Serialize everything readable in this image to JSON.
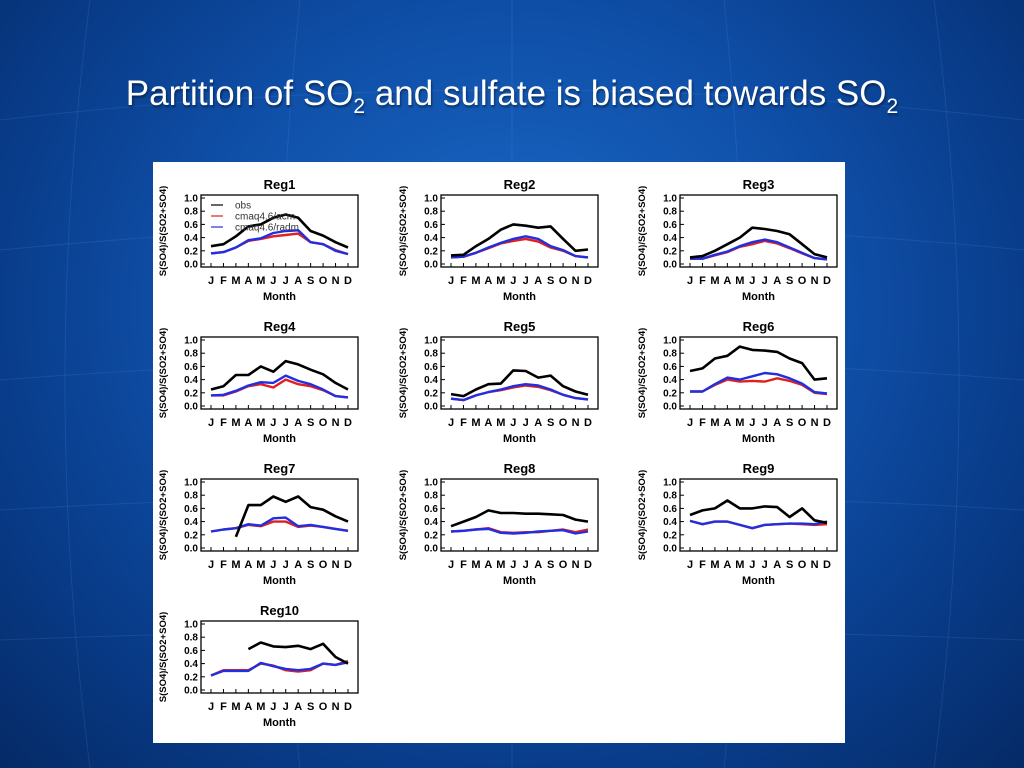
{
  "slide": {
    "title_parts": [
      "Partition of SO",
      "2",
      " and sulfate is biased towards SO",
      "2"
    ]
  },
  "colors": {
    "background": "#0f4fa8",
    "title": "#ffffff",
    "obs": "#000000",
    "cmaq_acm": "#e02020",
    "cmaq_radm": "#2030e0"
  },
  "chart_data": [
    {
      "type": "line",
      "title": "Reg1",
      "xlabel": "Month",
      "ylabel": "S(SO4)/S(SO2+SO4)",
      "categories": [
        "J",
        "F",
        "M",
        "A",
        "M",
        "J",
        "J",
        "A",
        "S",
        "O",
        "N",
        "D"
      ],
      "ylim": [
        0,
        1.0
      ],
      "yticks": [
        "0.0",
        "0.2",
        "0.4",
        "0.6",
        "0.8",
        "1.0"
      ],
      "legend": [
        "obs",
        "cmaq4.6/acm",
        "cmaq4.6/radm"
      ],
      "series": [
        {
          "name": "obs",
          "values": [
            0.27,
            0.3,
            0.42,
            0.57,
            0.6,
            0.7,
            0.75,
            0.7,
            0.5,
            0.43,
            0.33,
            0.25
          ]
        },
        {
          "name": "cmaq4.6/acm",
          "values": [
            0.16,
            0.18,
            0.25,
            0.35,
            0.38,
            0.42,
            0.44,
            0.46,
            0.33,
            0.3,
            0.21,
            0.15
          ]
        },
        {
          "name": "cmaq4.6/radm",
          "values": [
            0.16,
            0.18,
            0.25,
            0.36,
            0.39,
            0.47,
            0.5,
            0.51,
            0.33,
            0.3,
            0.2,
            0.15
          ]
        }
      ]
    },
    {
      "type": "line",
      "title": "Reg2",
      "xlabel": "Month",
      "ylabel": "S(SO4)/S(SO2+SO4)",
      "categories": [
        "J",
        "F",
        "M",
        "A",
        "M",
        "J",
        "J",
        "A",
        "S",
        "O",
        "N",
        "D"
      ],
      "ylim": [
        0,
        1.0
      ],
      "yticks": [
        "0.0",
        "0.2",
        "0.4",
        "0.6",
        "0.8",
        "1.0"
      ],
      "series": [
        {
          "name": "obs",
          "values": [
            0.13,
            0.14,
            0.27,
            0.38,
            0.52,
            0.6,
            0.58,
            0.55,
            0.57,
            0.38,
            0.2,
            0.22
          ]
        },
        {
          "name": "cmaq4.6/acm",
          "values": [
            0.1,
            0.11,
            0.17,
            0.24,
            0.31,
            0.35,
            0.38,
            0.34,
            0.25,
            0.2,
            0.12,
            0.1
          ]
        },
        {
          "name": "cmaq4.6/radm",
          "values": [
            0.1,
            0.11,
            0.17,
            0.25,
            0.32,
            0.38,
            0.42,
            0.38,
            0.27,
            0.21,
            0.12,
            0.1
          ]
        }
      ]
    },
    {
      "type": "line",
      "title": "Reg3",
      "xlabel": "Month",
      "ylabel": "S(SO4)/S(SO2+SO4)",
      "categories": [
        "J",
        "F",
        "M",
        "A",
        "M",
        "J",
        "J",
        "A",
        "S",
        "O",
        "N",
        "D"
      ],
      "ylim": [
        0,
        1.0
      ],
      "yticks": [
        "0.0",
        "0.2",
        "0.4",
        "0.6",
        "0.8",
        "1.0"
      ],
      "series": [
        {
          "name": "obs",
          "values": [
            0.1,
            0.12,
            0.2,
            0.3,
            0.4,
            0.55,
            0.53,
            0.5,
            0.45,
            0.3,
            0.15,
            0.1
          ]
        },
        {
          "name": "cmaq4.6/acm",
          "values": [
            0.08,
            0.08,
            0.13,
            0.18,
            0.26,
            0.3,
            0.35,
            0.31,
            0.24,
            0.16,
            0.09,
            0.07
          ]
        },
        {
          "name": "cmaq4.6/radm",
          "values": [
            0.08,
            0.08,
            0.14,
            0.19,
            0.27,
            0.33,
            0.37,
            0.33,
            0.25,
            0.17,
            0.09,
            0.07
          ]
        }
      ]
    },
    {
      "type": "line",
      "title": "Reg4",
      "xlabel": "Month",
      "ylabel": "S(SO4)/S(SO2+SO4)",
      "categories": [
        "J",
        "F",
        "M",
        "A",
        "M",
        "J",
        "J",
        "A",
        "S",
        "O",
        "N",
        "D"
      ],
      "ylim": [
        0,
        1.0
      ],
      "yticks": [
        "0.0",
        "0.2",
        "0.4",
        "0.6",
        "0.8",
        "1.0"
      ],
      "series": [
        {
          "name": "obs",
          "values": [
            0.25,
            0.3,
            0.47,
            0.47,
            0.6,
            0.52,
            0.68,
            0.63,
            0.55,
            0.48,
            0.35,
            0.25
          ]
        },
        {
          "name": "cmaq4.6/acm",
          "values": [
            0.16,
            0.16,
            0.22,
            0.3,
            0.33,
            0.28,
            0.4,
            0.33,
            0.3,
            0.24,
            0.15,
            0.13
          ]
        },
        {
          "name": "cmaq4.6/radm",
          "values": [
            0.16,
            0.17,
            0.23,
            0.31,
            0.36,
            0.35,
            0.46,
            0.38,
            0.33,
            0.25,
            0.15,
            0.13
          ]
        }
      ]
    },
    {
      "type": "line",
      "title": "Reg5",
      "xlabel": "Month",
      "ylabel": "S(SO4)/S(SO2+SO4)",
      "categories": [
        "J",
        "F",
        "M",
        "A",
        "M",
        "J",
        "J",
        "A",
        "S",
        "O",
        "N",
        "D"
      ],
      "ylim": [
        0,
        1.0
      ],
      "yticks": [
        "0.0",
        "0.2",
        "0.4",
        "0.6",
        "0.8",
        "1.0"
      ],
      "series": [
        {
          "name": "obs",
          "values": [
            0.18,
            0.15,
            0.25,
            0.33,
            0.34,
            0.54,
            0.53,
            0.43,
            0.46,
            0.3,
            0.22,
            0.17
          ]
        },
        {
          "name": "cmaq4.6/acm",
          "values": [
            0.11,
            0.09,
            0.16,
            0.21,
            0.24,
            0.28,
            0.31,
            0.29,
            0.24,
            0.17,
            0.12,
            0.1
          ]
        },
        {
          "name": "cmaq4.6/radm",
          "values": [
            0.11,
            0.09,
            0.16,
            0.21,
            0.25,
            0.3,
            0.33,
            0.31,
            0.25,
            0.17,
            0.12,
            0.1
          ]
        }
      ]
    },
    {
      "type": "line",
      "title": "Reg6",
      "xlabel": "Month",
      "ylabel": "S(SO4)/S(SO2+SO4)",
      "categories": [
        "J",
        "F",
        "M",
        "A",
        "M",
        "J",
        "J",
        "A",
        "S",
        "O",
        "N",
        "D"
      ],
      "ylim": [
        0,
        1.0
      ],
      "yticks": [
        "0.0",
        "0.2",
        "0.4",
        "0.6",
        "0.8",
        "1.0"
      ],
      "series": [
        {
          "name": "obs",
          "values": [
            0.53,
            0.57,
            0.72,
            0.76,
            0.9,
            0.85,
            0.84,
            0.82,
            0.72,
            0.65,
            0.4,
            0.42
          ]
        },
        {
          "name": "cmaq4.6/acm",
          "values": [
            0.22,
            0.22,
            0.32,
            0.4,
            0.37,
            0.38,
            0.37,
            0.42,
            0.38,
            0.32,
            0.2,
            0.18
          ]
        },
        {
          "name": "cmaq4.6/radm",
          "values": [
            0.22,
            0.22,
            0.33,
            0.43,
            0.4,
            0.45,
            0.5,
            0.48,
            0.42,
            0.34,
            0.21,
            0.19
          ]
        }
      ]
    },
    {
      "type": "line",
      "title": "Reg7",
      "xlabel": "Month",
      "ylabel": "S(SO4)/S(SO2+SO4)",
      "categories": [
        "J",
        "F",
        "M",
        "A",
        "M",
        "J",
        "J",
        "A",
        "S",
        "O",
        "N",
        "D"
      ],
      "ylim": [
        0,
        1.0
      ],
      "yticks": [
        "0.0",
        "0.2",
        "0.4",
        "0.6",
        "0.8",
        "1.0"
      ],
      "series": [
        {
          "name": "obs",
          "values": [
            null,
            null,
            0.17,
            0.65,
            0.65,
            0.78,
            0.7,
            0.78,
            0.62,
            0.58,
            0.48,
            0.4
          ]
        },
        {
          "name": "cmaq4.6/acm",
          "values": [
            0.25,
            0.28,
            0.3,
            0.35,
            0.33,
            0.4,
            0.4,
            0.32,
            0.34,
            0.32,
            0.29,
            0.26
          ]
        },
        {
          "name": "cmaq4.6/radm",
          "values": [
            0.25,
            0.28,
            0.3,
            0.36,
            0.34,
            0.45,
            0.46,
            0.33,
            0.35,
            0.32,
            0.29,
            0.26
          ]
        }
      ]
    },
    {
      "type": "line",
      "title": "Reg8",
      "xlabel": "Month",
      "ylabel": "S(SO4)/S(SO2+SO4)",
      "categories": [
        "J",
        "F",
        "M",
        "A",
        "M",
        "J",
        "J",
        "A",
        "S",
        "O",
        "N",
        "D"
      ],
      "ylim": [
        0,
        1.0
      ],
      "yticks": [
        "0.0",
        "0.2",
        "0.4",
        "0.6",
        "0.8",
        "1.0"
      ],
      "series": [
        {
          "name": "obs",
          "values": [
            0.33,
            0.4,
            0.47,
            0.57,
            0.53,
            0.53,
            0.52,
            0.52,
            0.51,
            0.5,
            0.43,
            0.4
          ]
        },
        {
          "name": "cmaq4.6/acm",
          "values": [
            0.25,
            0.26,
            0.28,
            0.3,
            0.24,
            0.23,
            0.24,
            0.24,
            0.26,
            0.28,
            0.24,
            0.28
          ]
        },
        {
          "name": "cmaq4.6/radm",
          "values": [
            0.25,
            0.26,
            0.28,
            0.29,
            0.23,
            0.22,
            0.23,
            0.25,
            0.26,
            0.27,
            0.22,
            0.25
          ]
        }
      ]
    },
    {
      "type": "line",
      "title": "Reg9",
      "xlabel": "Month",
      "ylabel": "S(SO4)/S(SO2+SO4)",
      "categories": [
        "J",
        "F",
        "M",
        "A",
        "M",
        "J",
        "J",
        "A",
        "S",
        "O",
        "N",
        "D"
      ],
      "ylim": [
        0,
        1.0
      ],
      "yticks": [
        "0.0",
        "0.2",
        "0.4",
        "0.6",
        "0.8",
        "1.0"
      ],
      "series": [
        {
          "name": "obs",
          "values": [
            0.5,
            0.57,
            0.6,
            0.72,
            0.6,
            0.6,
            0.63,
            0.62,
            0.47,
            0.6,
            0.42,
            0.38
          ]
        },
        {
          "name": "cmaq4.6/acm",
          "values": [
            0.41,
            0.36,
            0.4,
            0.4,
            0.35,
            0.3,
            0.35,
            0.36,
            0.37,
            0.36,
            0.35,
            0.36
          ]
        },
        {
          "name": "cmaq4.6/radm",
          "values": [
            0.41,
            0.36,
            0.4,
            0.4,
            0.35,
            0.3,
            0.35,
            0.36,
            0.37,
            0.37,
            0.36,
            0.4
          ]
        }
      ]
    },
    {
      "type": "line",
      "title": "Reg10",
      "xlabel": "Month",
      "ylabel": "S(SO4)/S(SO2+SO4)",
      "categories": [
        "J",
        "F",
        "M",
        "A",
        "M",
        "J",
        "J",
        "A",
        "S",
        "O",
        "N",
        "D"
      ],
      "ylim": [
        0,
        1.0
      ],
      "yticks": [
        "0.0",
        "0.2",
        "0.4",
        "0.6",
        "0.8",
        "1.0"
      ],
      "series": [
        {
          "name": "obs",
          "values": [
            null,
            null,
            null,
            0.62,
            0.72,
            0.66,
            0.65,
            0.67,
            0.62,
            0.7,
            0.5,
            0.4
          ]
        },
        {
          "name": "cmaq4.6/acm",
          "values": [
            0.22,
            0.3,
            0.3,
            0.3,
            0.4,
            0.37,
            0.3,
            0.28,
            0.3,
            0.4,
            0.38,
            0.44
          ]
        },
        {
          "name": "cmaq4.6/radm",
          "values": [
            0.22,
            0.29,
            0.29,
            0.29,
            0.41,
            0.36,
            0.32,
            0.3,
            0.32,
            0.4,
            0.38,
            0.42
          ]
        }
      ]
    }
  ]
}
